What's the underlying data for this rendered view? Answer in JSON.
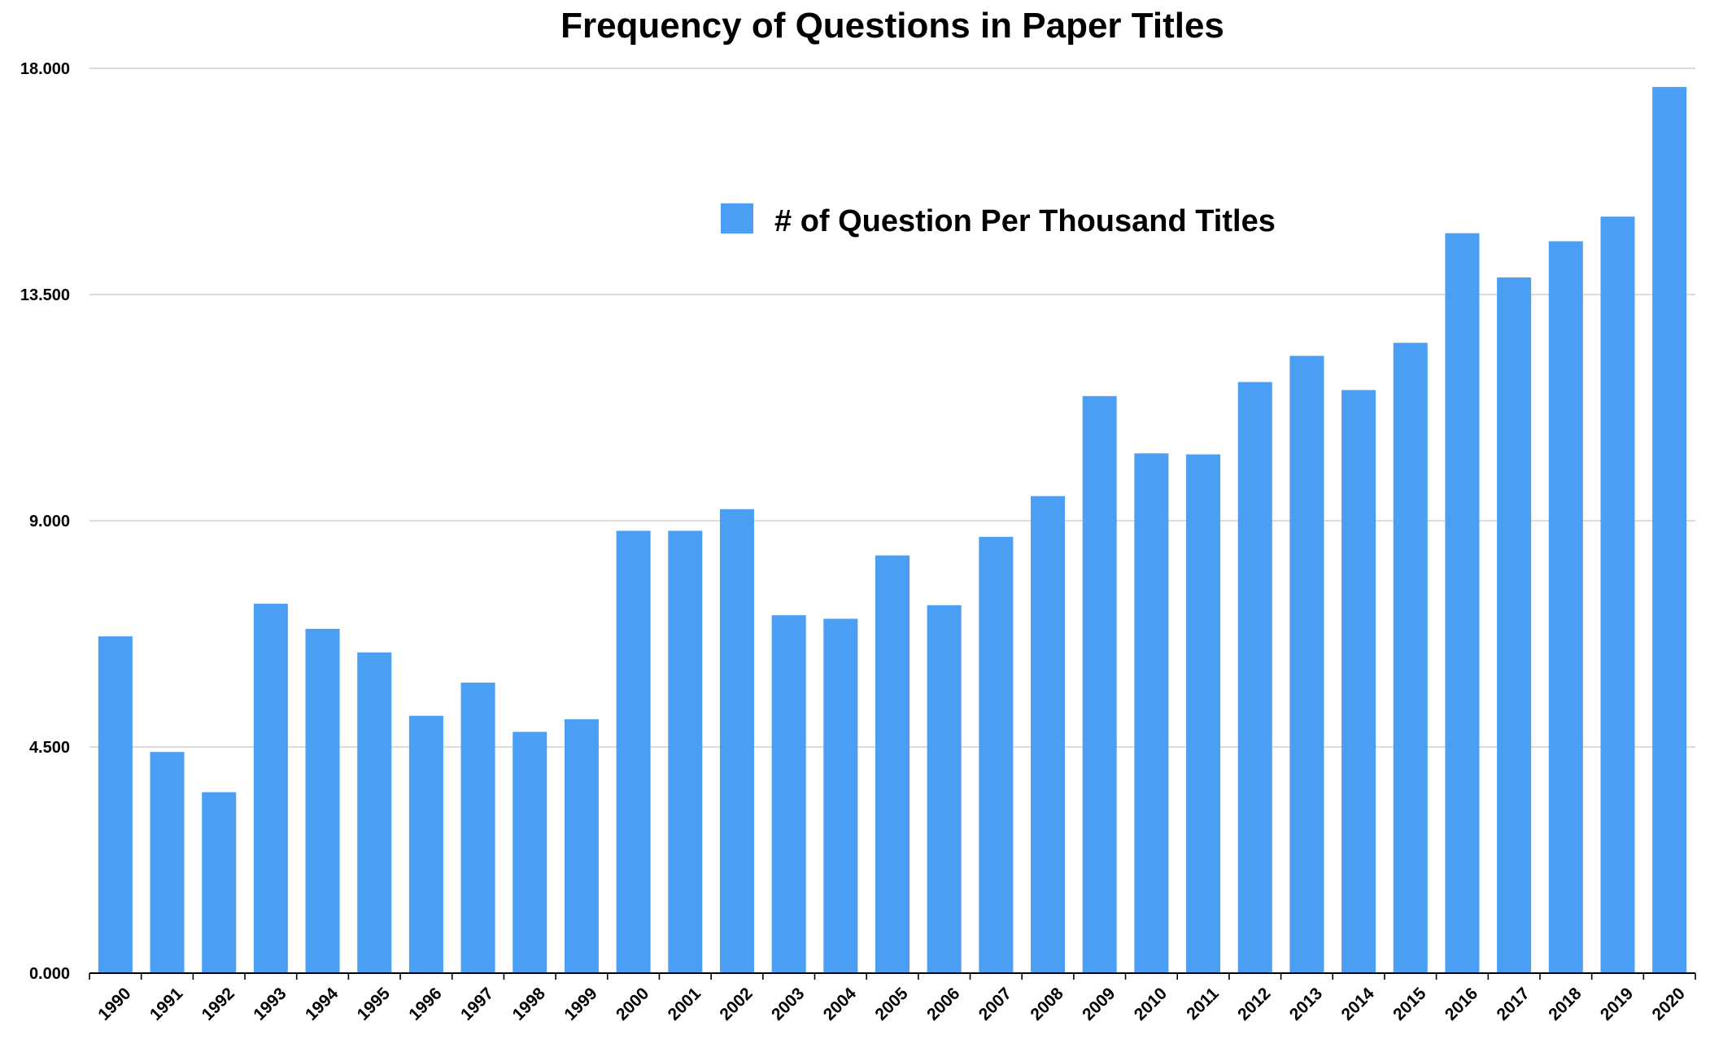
{
  "chart_data": {
    "type": "bar",
    "title": "Frequency of Questions in Paper Titles",
    "xlabel": "",
    "ylabel": "",
    "ylim": [
      0,
      18
    ],
    "yticks": [
      "0.000",
      "4.500",
      "9.000",
      "13.500",
      "18.000"
    ],
    "ytick_values": [
      0,
      4.5,
      9,
      13.5,
      18
    ],
    "grid": true,
    "legend_position": "upper-right",
    "bar_color": "#4a9ff5",
    "categories": [
      "1990",
      "1991",
      "1992",
      "1993",
      "1994",
      "1995",
      "1996",
      "1997",
      "1998",
      "1999",
      "2000",
      "2001",
      "2002",
      "2003",
      "2004",
      "2005",
      "2006",
      "2007",
      "2008",
      "2009",
      "2010",
      "2011",
      "2012",
      "2013",
      "2014",
      "2015",
      "2016",
      "2017",
      "2018",
      "2019",
      "2020"
    ],
    "series": [
      {
        "name": "# of Question Per Thousand Titles",
        "values": [
          6.7,
          4.4,
          3.6,
          7.35,
          6.85,
          6.38,
          5.12,
          5.78,
          4.8,
          5.05,
          8.8,
          8.8,
          9.23,
          7.12,
          7.05,
          8.31,
          7.32,
          8.68,
          9.49,
          11.48,
          10.34,
          10.32,
          11.76,
          12.28,
          11.6,
          12.54,
          14.72,
          13.84,
          14.56,
          15.05,
          17.63
        ]
      }
    ]
  }
}
